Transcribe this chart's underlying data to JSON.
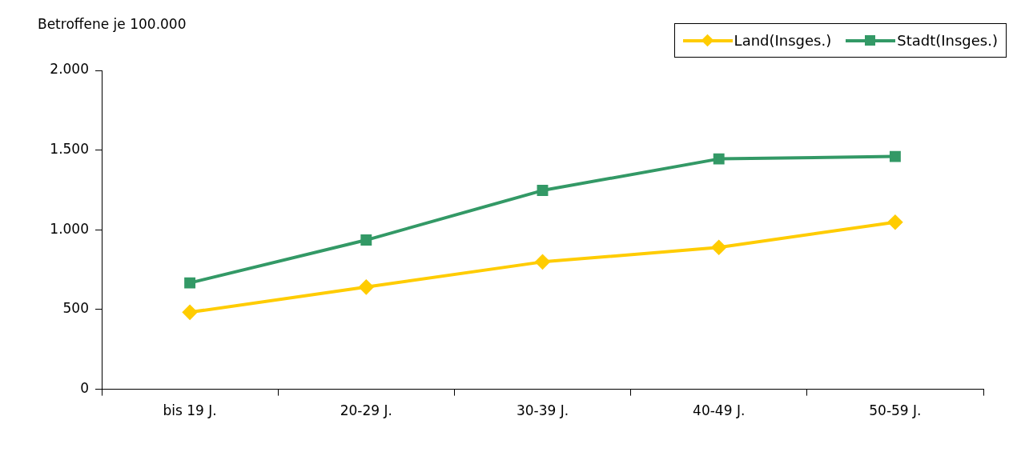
{
  "chart_data": {
    "type": "line",
    "ylabel": "Betroffene je 100.000",
    "categories": [
      "bis 19 J.",
      "20-29 J.",
      "30-39 J.",
      "40-49 J.",
      "50-59 J."
    ],
    "series": [
      {
        "name": "Land(Insges.)",
        "color": "#ffcc00",
        "marker": "diamond",
        "values": [
          483,
          641,
          799,
          890,
          1048
        ]
      },
      {
        "name": "Stadt(Insges.)",
        "color": "#339966",
        "marker": "square",
        "values": [
          667,
          936,
          1247,
          1445,
          1460
        ]
      }
    ],
    "ylim": [
      0,
      2000
    ],
    "yticks": [
      {
        "value": 0,
        "label": "0"
      },
      {
        "value": 500,
        "label": "500"
      },
      {
        "value": 1000,
        "label": "1.000"
      },
      {
        "value": 1500,
        "label": "1.500"
      },
      {
        "value": 2000,
        "label": "2.000"
      }
    ],
    "grid": false,
    "legend": "top right",
    "line_style": "solid"
  }
}
